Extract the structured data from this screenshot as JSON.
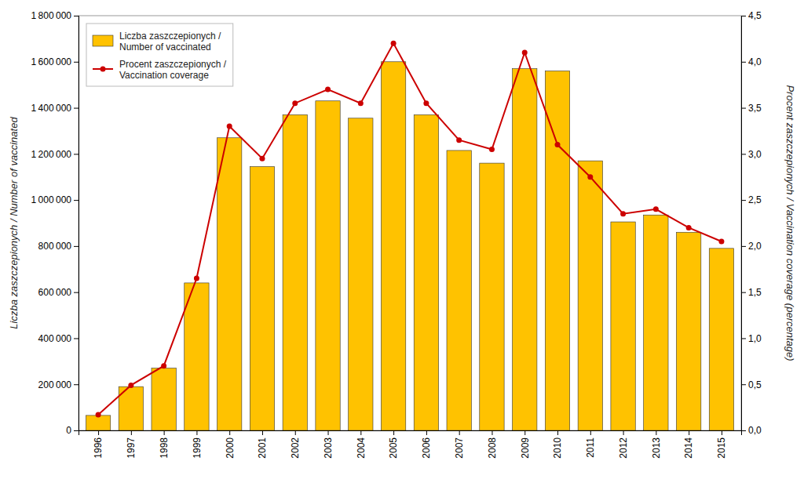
{
  "chart_data": {
    "type": "bar",
    "x": [
      1996,
      1997,
      1998,
      1999,
      2000,
      2001,
      2002,
      2003,
      2004,
      2005,
      2006,
      2007,
      2008,
      2009,
      2010,
      2011,
      2012,
      2013,
      2014,
      2015
    ],
    "xlim": [
      1995.4,
      2015.6
    ],
    "xticks": [
      1996,
      1997,
      1998,
      1999,
      2000,
      2001,
      2002,
      2003,
      2004,
      2005,
      2006,
      2007,
      2008,
      2009,
      2010,
      2011,
      2012,
      2013,
      2014,
      2015
    ],
    "ylabel": "Liczba zaszczepionych /  Number of vaccinated",
    "y2label": "Procent zaszczepionych / Vaccination coverage (percentage)",
    "ylim": [
      0,
      1800000
    ],
    "yticks": [
      0,
      {
        "value": 200000,
        "label": "200 000"
      },
      {
        "value": 400000,
        "label": "400 000"
      },
      {
        "value": 600000,
        "label": "600 000"
      },
      {
        "value": 800000,
        "label": "800 000"
      },
      {
        "value": 1000000,
        "label": "1 000 000"
      },
      {
        "value": 1200000,
        "label": "1 200 000"
      },
      {
        "value": 1400000,
        "label": "1 400 000"
      },
      {
        "value": 1600000,
        "label": "1 600 000"
      },
      {
        "value": 1800000,
        "label": "1 800 000"
      }
    ],
    "y2lim": [
      0,
      4.5
    ],
    "y2ticks": [
      {
        "value": 0.0,
        "label": "0,0"
      },
      {
        "value": 0.5,
        "label": "0,5"
      },
      {
        "value": 1.0,
        "label": "1,0"
      },
      {
        "value": 1.5,
        "label": "1,5"
      },
      {
        "value": 2.0,
        "label": "2,0"
      },
      {
        "value": 2.5,
        "label": "2,5"
      },
      {
        "value": 3.0,
        "label": "3,0"
      },
      {
        "value": 3.5,
        "label": "3,5"
      },
      {
        "value": 4.0,
        "label": "4,0"
      },
      {
        "value": 4.5,
        "label": "4,5"
      }
    ],
    "grid": false,
    "legend": "upper left",
    "series": [
      {
        "name": "Liczba zaszczepionych /\nNumber of vaccinated",
        "type": "bar",
        "color": "#FFC200",
        "values": [
          65000,
          190000,
          270000,
          640000,
          1270000,
          1145000,
          1370000,
          1430000,
          1355000,
          1600000,
          1370000,
          1215000,
          1160000,
          1570000,
          1560000,
          1170000,
          905000,
          935000,
          860000,
          790000
        ]
      },
      {
        "name": "Procent zaszczepionych /\nVaccination coverage",
        "type": "line",
        "color": "#CC0000",
        "marker": "circle",
        "axis": "y2",
        "values": [
          0.17,
          0.49,
          0.7,
          1.65,
          3.3,
          2.95,
          3.55,
          3.7,
          3.55,
          4.2,
          3.55,
          3.15,
          3.05,
          4.1,
          3.1,
          2.75,
          2.35,
          2.4,
          2.2,
          2.05
        ]
      }
    ]
  }
}
